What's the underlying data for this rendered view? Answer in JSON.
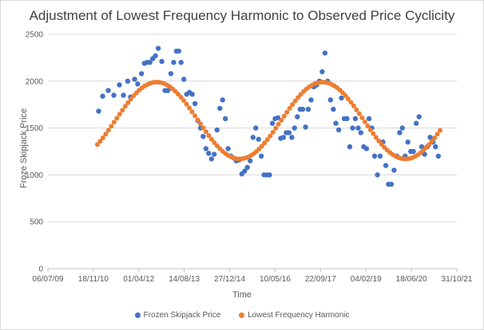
{
  "chart_data": {
    "type": "scatter",
    "title": "Adjustment of Lowest Frequency Harmonic to Observed Price Cyclicity",
    "xlabel": "Time",
    "ylabel": "Froze Skipjack Price",
    "ylim": [
      0,
      2500
    ],
    "yticks": [
      0,
      500,
      1000,
      1500,
      2000,
      2500
    ],
    "xlim": [
      "2009-07-06",
      "2021-10-31"
    ],
    "xticks": [
      "06/07/09",
      "18/11/10",
      "01/04/12",
      "14/08/13",
      "27/12/14",
      "10/05/16",
      "22/09/17",
      "04/02/19",
      "18/06/20",
      "31/10/21"
    ],
    "grid": "horizontal",
    "legend_position": "bottom",
    "series": [
      {
        "name": "Frozen Skipjack Price",
        "color": "#4472c4",
        "points": [
          [
            "2011-01-15",
            1680
          ],
          [
            "2011-03-01",
            1840
          ],
          [
            "2011-05-01",
            1900
          ],
          [
            "2011-07-01",
            1850
          ],
          [
            "2011-09-01",
            1960
          ],
          [
            "2011-10-15",
            1850
          ],
          [
            "2011-12-01",
            2000
          ],
          [
            "2012-01-01",
            1830
          ],
          [
            "2012-02-15",
            2020
          ],
          [
            "2012-03-20",
            1970
          ],
          [
            "2012-05-01",
            2080
          ],
          [
            "2012-06-01",
            2190
          ],
          [
            "2012-07-01",
            2200
          ],
          [
            "2012-08-01",
            2200
          ],
          [
            "2012-09-01",
            2240
          ],
          [
            "2012-10-01",
            2270
          ],
          [
            "2012-11-01",
            2350
          ],
          [
            "2012-12-10",
            2210
          ],
          [
            "2013-01-15",
            1900
          ],
          [
            "2013-02-15",
            1900
          ],
          [
            "2013-03-20",
            2080
          ],
          [
            "2013-04-20",
            2200
          ],
          [
            "2013-05-20",
            2320
          ],
          [
            "2013-06-15",
            2320
          ],
          [
            "2013-07-10",
            2200
          ],
          [
            "2013-08-10",
            2020
          ],
          [
            "2013-09-10",
            1860
          ],
          [
            "2013-10-10",
            1880
          ],
          [
            "2013-11-10",
            1860
          ],
          [
            "2013-12-10",
            1760
          ],
          [
            "2014-01-10",
            1580
          ],
          [
            "2014-02-10",
            1500
          ],
          [
            "2014-03-10",
            1410
          ],
          [
            "2014-04-10",
            1280
          ],
          [
            "2014-05-10",
            1230
          ],
          [
            "2014-06-10",
            1170
          ],
          [
            "2014-07-10",
            1220
          ],
          [
            "2014-08-10",
            1480
          ],
          [
            "2014-09-10",
            1710
          ],
          [
            "2014-10-10",
            1800
          ],
          [
            "2014-11-10",
            1600
          ],
          [
            "2014-12-10",
            1280
          ],
          [
            "2015-01-10",
            1200
          ],
          [
            "2015-02-10",
            1180
          ],
          [
            "2015-03-10",
            1150
          ],
          [
            "2015-04-10",
            1160
          ],
          [
            "2015-05-10",
            1010
          ],
          [
            "2015-06-10",
            1040
          ],
          [
            "2015-07-10",
            1080
          ],
          [
            "2015-08-10",
            1150
          ],
          [
            "2015-09-10",
            1400
          ],
          [
            "2015-10-10",
            1500
          ],
          [
            "2015-11-10",
            1380
          ],
          [
            "2015-12-10",
            1200
          ],
          [
            "2016-01-10",
            1000
          ],
          [
            "2016-02-10",
            1000
          ],
          [
            "2016-03-10",
            1000
          ],
          [
            "2016-04-10",
            1550
          ],
          [
            "2016-05-10",
            1600
          ],
          [
            "2016-06-10",
            1610
          ],
          [
            "2016-07-10",
            1390
          ],
          [
            "2016-08-10",
            1400
          ],
          [
            "2016-09-10",
            1450
          ],
          [
            "2016-10-10",
            1450
          ],
          [
            "2016-11-10",
            1400
          ],
          [
            "2016-12-10",
            1500
          ],
          [
            "2017-01-10",
            1620
          ],
          [
            "2017-02-10",
            1700
          ],
          [
            "2017-03-10",
            1700
          ],
          [
            "2017-04-10",
            1510
          ],
          [
            "2017-05-10",
            1700
          ],
          [
            "2017-06-10",
            1800
          ],
          [
            "2017-07-10",
            1940
          ],
          [
            "2017-08-10",
            1960
          ],
          [
            "2017-09-10",
            2000
          ],
          [
            "2017-10-10",
            2100
          ],
          [
            "2017-11-10",
            2300
          ],
          [
            "2017-12-10",
            2000
          ],
          [
            "2018-01-10",
            1800
          ],
          [
            "2018-02-10",
            1700
          ],
          [
            "2018-03-10",
            1550
          ],
          [
            "2018-04-10",
            1480
          ],
          [
            "2018-05-10",
            1820
          ],
          [
            "2018-06-10",
            1600
          ],
          [
            "2018-07-10",
            1600
          ],
          [
            "2018-08-10",
            1300
          ],
          [
            "2018-09-10",
            1500
          ],
          [
            "2018-10-10",
            1600
          ],
          [
            "2018-11-10",
            1500
          ],
          [
            "2018-12-10",
            1450
          ],
          [
            "2019-01-10",
            1300
          ],
          [
            "2019-02-10",
            1280
          ],
          [
            "2019-03-10",
            1600
          ],
          [
            "2019-04-10",
            1500
          ],
          [
            "2019-05-10",
            1200
          ],
          [
            "2019-06-10",
            1000
          ],
          [
            "2019-07-10",
            1200
          ],
          [
            "2019-08-10",
            1350
          ],
          [
            "2019-09-10",
            1100
          ],
          [
            "2019-10-10",
            900
          ],
          [
            "2019-11-10",
            900
          ],
          [
            "2019-12-10",
            1050
          ],
          [
            "2020-01-10",
            1200
          ],
          [
            "2020-02-10",
            1450
          ],
          [
            "2020-03-10",
            1500
          ],
          [
            "2020-04-10",
            1200
          ],
          [
            "2020-05-10",
            1350
          ],
          [
            "2020-06-10",
            1250
          ],
          [
            "2020-07-10",
            1250
          ],
          [
            "2020-08-10",
            1550
          ],
          [
            "2020-09-10",
            1620
          ],
          [
            "2020-10-10",
            1300
          ],
          [
            "2020-11-10",
            1220
          ],
          [
            "2020-12-10",
            1300
          ],
          [
            "2021-01-10",
            1400
          ],
          [
            "2021-02-10",
            1350
          ],
          [
            "2021-03-10",
            1300
          ],
          [
            "2021-04-10",
            1200
          ]
        ]
      },
      {
        "name": "Lowest Frequency Harmonic",
        "color": "#ed7d31",
        "harmonic": {
          "mean": 1580,
          "amplitude": 410,
          "peak": "2012-10-15",
          "period_days": 1825,
          "start": "2011-01-01",
          "end": "2021-04-30",
          "count": 124
        }
      }
    ]
  }
}
